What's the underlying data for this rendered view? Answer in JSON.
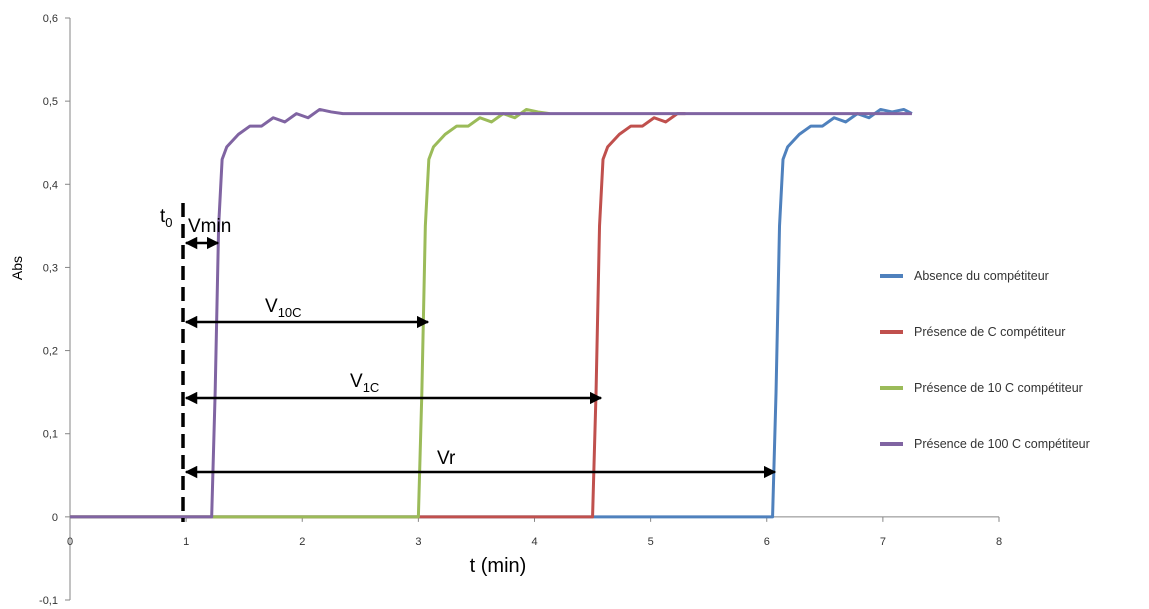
{
  "chart_data": {
    "type": "line",
    "x_label": "t  (min)",
    "y_label": "Abs",
    "xlim": [
      0,
      8
    ],
    "xticks": [
      0,
      1,
      2,
      3,
      4,
      5,
      6,
      7,
      8
    ],
    "ylim": [
      -0.1,
      0.6
    ],
    "yticks": [
      {
        "value": -0.1,
        "label": "-0,1"
      },
      0,
      {
        "value": 0.1,
        "label": "0,1"
      },
      {
        "value": 0.2,
        "label": "0,2"
      },
      {
        "value": 0.3,
        "label": "0,3"
      },
      {
        "value": 0.4,
        "label": "0,4"
      },
      {
        "value": 0.5,
        "label": "0,5"
      },
      {
        "value": 0.6,
        "label": "0,6"
      }
    ],
    "series": [
      {
        "name": "Absence du compétiteur",
        "color": "#4f81bd",
        "x": [
          0,
          6.05,
          6.08,
          6.11,
          6.14,
          6.18,
          6.28,
          6.38,
          6.48,
          6.58,
          6.68,
          6.78,
          6.88,
          6.98,
          7.08,
          7.18,
          7.25
        ],
        "values": [
          0,
          0,
          0.15,
          0.35,
          0.43,
          0.445,
          0.46,
          0.47,
          0.47,
          0.48,
          0.475,
          0.485,
          0.48,
          0.49,
          0.487,
          0.49,
          0.485
        ]
      },
      {
        "name": "Présence de C compétiteur",
        "color": "#c0504d",
        "x": [
          0,
          4.5,
          4.53,
          4.56,
          4.59,
          4.63,
          4.73,
          4.83,
          4.93,
          5.03,
          5.13,
          5.23,
          5.3
        ],
        "values": [
          0,
          0,
          0.15,
          0.35,
          0.43,
          0.445,
          0.46,
          0.47,
          0.47,
          0.48,
          0.475,
          0.485,
          0.485
        ]
      },
      {
        "name": "Présence de 10 C compétiteur",
        "color": "#9bbb59",
        "x": [
          0,
          3.0,
          3.03,
          3.06,
          3.09,
          3.13,
          3.23,
          3.33,
          3.43,
          3.53,
          3.63,
          3.73,
          3.83,
          3.93,
          4.03,
          4.13
        ],
        "values": [
          0,
          0,
          0.15,
          0.35,
          0.43,
          0.445,
          0.46,
          0.47,
          0.47,
          0.48,
          0.475,
          0.485,
          0.48,
          0.49,
          0.487,
          0.485
        ]
      },
      {
        "name": "Présence de 100 C compétiteur",
        "color": "#8064a2",
        "x": [
          0,
          1.22,
          1.25,
          1.28,
          1.31,
          1.35,
          1.45,
          1.55,
          1.65,
          1.75,
          1.85,
          1.95,
          2.05,
          2.15,
          2.25,
          2.35,
          7.25
        ],
        "values": [
          0,
          0,
          0.15,
          0.35,
          0.43,
          0.445,
          0.46,
          0.47,
          0.47,
          0.48,
          0.475,
          0.485,
          0.48,
          0.49,
          0.487,
          0.485,
          0.485
        ]
      }
    ],
    "annotations": [
      {
        "text": "t",
        "subscript": "0"
      },
      {
        "text": "Vmin"
      },
      {
        "text": "V",
        "subscript": "10C"
      },
      {
        "text": "V",
        "subscript": "1C"
      },
      {
        "text": "Vr"
      }
    ]
  }
}
